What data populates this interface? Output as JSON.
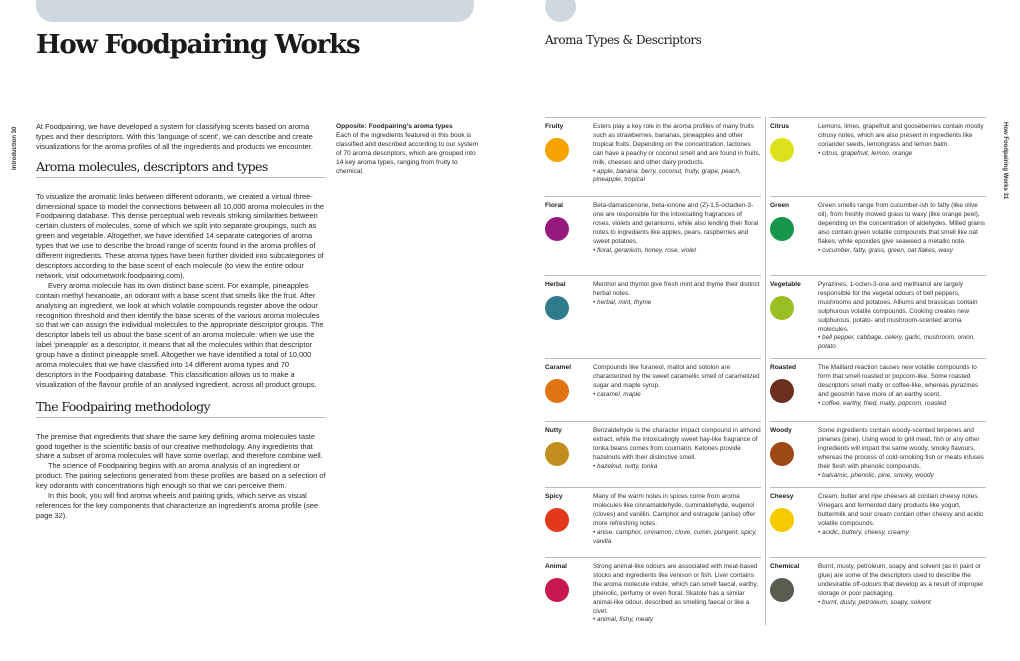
{
  "left_page": {
    "title": "How Foodpairing Works",
    "running_head": "Introduction   30",
    "intro": "At Foodpairing, we have developed a system for classifying scents based on aroma types and their descriptors. With this 'language of scent', we can describe and create visualizations for the aroma profiles of all the ingredients and products we encounter.",
    "section1": {
      "heading": "Aroma molecules, descriptors and types",
      "paragraphs": [
        "To visualize the aromatic links between different odorants, we created a virtual three-dimensional space to model the connections between all 10,000 aroma molecules in the Foodpairing database. This dense perceptual web reveals striking similarities between certain clusters of molecules, some of which we split into separate groupings, such as green and vegetable. Altogether, we have identified 14 separate categories of aroma types that we use to describe the broad range of scents found in the aroma profiles of different ingredients. These aroma types have been further divided into subcategories of descriptors according to the base scent of each molecule (to view the entire odour network, visit odournetwork.foodpairing.com).",
        "Every aroma molecule has its own distinct base scent. For example, pineapples contain methyl hexanoate, an odorant with a base scent that smells like the fruit. After analysing an ingredient, we look at which volatile compounds register above the odour recognition threshold and then identify the base scents of the various aroma molecules so that we can assign the individual molecules to the appropriate descriptor groups. The descriptor labels tell us about the base scent of an aroma molecule: when we use the label 'pineapple' as a descriptor, it means that all the molecules within that descriptor group have a distinct pineapple smell. Altogether we have identified a total of 10,000 aroma molecules that we have classified into 14 different aroma types and 70 descriptors in the Foodpairing database. This classification allows us to make a visualization of the flavour profile of an analysed ingredient, across all product groups."
      ]
    },
    "section2": {
      "heading": "The Foodpairing methodology",
      "paragraphs": [
        "The premise that ingredients that share the same key defining aroma molecules taste good together is the scientific basis of our creative methodology. Any ingredients that share a subset of aroma molecules will have some overlap, and therefore combine well.",
        "The science of Foodpairing begins with an aroma analysis of an ingredient or product. The pairing selections generated from these profiles are based on a selection of key odorants with concentrations high enough so that we can perceive them.",
        "In this book, you will find aroma wheels and pairing grids, which serve as visual references for the key components that characterize an ingredient's aroma profile (see page 32)."
      ]
    },
    "caption": {
      "title": "Opposite: Foodpairing's aroma types",
      "text": "Each of the ingredients featured in this book is classified and described according to our system of 70  aroma descriptors, which are grouped into 14 key aroma types, ranging from fruity to chemical."
    }
  },
  "right_page": {
    "title": "Aroma Types & Descriptors",
    "running_head": "How Foodpairing Works   31",
    "columns": [
      [
        {
          "name": "Fruity",
          "color": "#f5a300",
          "text": "Esters play a key role in the aroma profiles of many fruits such as strawberries, bananas, pineapples and other tropical fruits. Depending on the concentration, lactones can have a peachy or coconut smell and are found in fruits, milk, cheeses and other dairy products.",
          "descriptors": "• apple, banana, berry, coconut, fruity, grape, peach, pineapple, tropical",
          "h": 79
        },
        {
          "name": "Floral",
          "color": "#961b7f",
          "text": "Beta-damascenone, beta-ionone and (Z)-1,5-octadien-3-one are responsible for the intoxicating fragrances of roses, violets and geraniums, while also lending their floral notes to ingredients like apples, pears, raspberries and sweet potatoes.",
          "descriptors": "• floral, geranium, honey, rose, violet",
          "h": 79
        },
        {
          "name": "Herbal",
          "color": "#2f7c8c",
          "text": "Menthol and thymol give fresh mint and thyme their distinct herbal notes.",
          "descriptors": "• herbal, mint, thyme",
          "h": 83
        },
        {
          "name": "Caramel",
          "color": "#e07312",
          "text": "Compounds like furaneol, maltol and sotolon are characterized by the sweet caramellic smell of caramelized sugar and maple syrup.",
          "descriptors": "• caramel, maple",
          "h": 63
        },
        {
          "name": "Nutty",
          "color": "#c28d1d",
          "text": "Benzaldehyde is the character impact compound in almond extract, while the intoxicatingly sweet hay-like fragrance of tonka beans comes from coumarin. Ketones provide hazelnuts with their distinctive smell.",
          "descriptors": "• hazelnut, nutty, tonka",
          "h": 66
        },
        {
          "name": "Spicy",
          "color": "#e2391c",
          "text": "Many of the warm notes in spices come from aroma molecules like cinnamaldehyde, cuminaldehyde, eugenol (cloves) and vanillin. Camphor and estragole (anise) offer more refreshing notes.",
          "descriptors": "• anise, camphor, cinnamon, clove, cumin, pungent, spicy, vanilla",
          "h": 70
        },
        {
          "name": "Animal",
          "color": "#c9184d",
          "text": "Strong animal-like odours are associated with meat-based stocks and ingredients like venison or fish. Liver contains the aroma molecule indole, which can smell faecal, earthy, phenolic, perfumy or even floral. Skatole has a similar animal-like odour, described as smelling faecal or like a civet.",
          "descriptors": "• animal, fishy, meaty",
          "h": 70
        }
      ],
      [
        {
          "name": "Citrus",
          "color": "#dde11b",
          "text": "Lemons, limes, grapefruit and gooseberries contain mostly citrusy notes, which are also present in ingredients like coriander seeds, lemongrass and lemon balm.",
          "descriptors": "• citrus, grapefruit, lemon, orange",
          "h": 79
        },
        {
          "name": "Green",
          "color": "#16964a",
          "text": "Green smells range from cucumber-ish to fatty (like olive oil), from freshly mowed grass to waxy (like orange peel), depending on the concentration of aldehydes. Milled grains also contain green volatile compounds that smell like oat flakes, while epoxides give seaweed a metallic note.",
          "descriptors": "• cucumber, fatty, grass, green, oat flakes, waxy",
          "h": 79
        },
        {
          "name": "Vegetable",
          "color": "#99bf22",
          "text": "Pyrazines, 1-octen-3-one and methianol are largely responsible for the vegetal odours of bell peppers, mushrooms and potatoes. Alliums and brassicas contain sulphurous volatile compounds. Cooking creates new sulphurous, potato- and mushroom-scented aroma molecules.",
          "descriptors": "• bell pepper, cabbage, celery, garlic, mushroom, onion, potato",
          "h": 83
        },
        {
          "name": "Roasted",
          "color": "#6b2f1f",
          "text": "The Maillard reaction causes new volatile compounds to form that smell roasted or popcorn-like. Some roasted descriptors smell malty or coffee-like, whereas pyrazines and geosmin have more of an earthy scent.",
          "descriptors": "• coffee, earthy, fried, malty, popcorn, roasted",
          "h": 63
        },
        {
          "name": "Woody",
          "color": "#9e4a14",
          "text": "Some ingredients contain woody-scented terpenes and pinenes (pine). Using wood to grill meat, fish or any other ingredients will impart the same woody, smoky flavours, whereas the process of cold-smoking fish or meats infuses their flesh with phenolic compounds.",
          "descriptors": "• balsamic, phenolic, pine, smoky, woody",
          "h": 66
        },
        {
          "name": "Cheesy",
          "color": "#f7c900",
          "text": "Cream, butter and ripe cheeses all contain cheesy notes. Vinegars and fermented dairy products like yogurt, buttermilk and sour cream contain other cheesy and acidic volatile compounds.",
          "descriptors": "• acidic, buttery, cheesy, creamy",
          "h": 70
        },
        {
          "name": "Chemical",
          "color": "#575d4f",
          "text": "Burnt, musty, petroleum, soapy and solvent (as in paint or glue) are some of the descriptors used to describe the undesirable off-odours that develop as a result of improper storage or poor packaging.",
          "descriptors": "• burnt, dusty, petroleum, soapy, solvent",
          "h": 70
        }
      ]
    ]
  }
}
